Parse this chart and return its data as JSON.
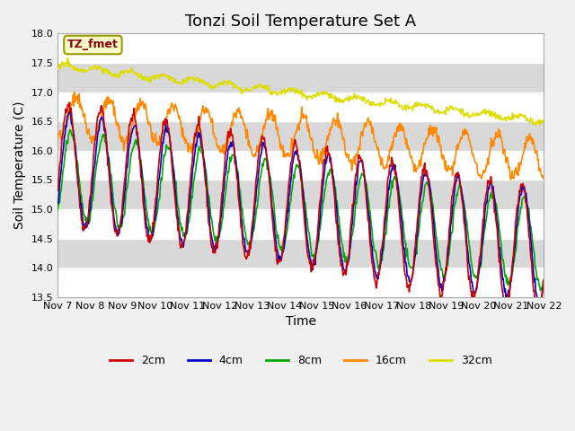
{
  "title": "Tonzi Soil Temperature Set A",
  "xlabel": "Time",
  "ylabel": "Soil Temperature (C)",
  "ylim": [
    13.5,
    18.0
  ],
  "annotation": "TZ_fmet",
  "colors": {
    "2cm": "#cc0000",
    "4cm": "#0000cc",
    "8cm": "#00aa00",
    "16cm": "#ff8800",
    "32cm": "#dddd00"
  },
  "x_tick_labels": [
    "Nov 7",
    "Nov 8",
    "Nov 9",
    "Nov 10",
    "Nov 11",
    "Nov 12",
    "Nov 13",
    "Nov 14",
    "Nov 15",
    "Nov 16",
    "Nov 17",
    "Nov 18",
    "Nov 19",
    "Nov 20",
    "Nov 21",
    "Nov 22"
  ],
  "background_color": "#f0f0f0",
  "title_fontsize": 13,
  "label_fontsize": 10,
  "tick_fontsize": 8,
  "num_days": 15,
  "points_per_day": 48
}
